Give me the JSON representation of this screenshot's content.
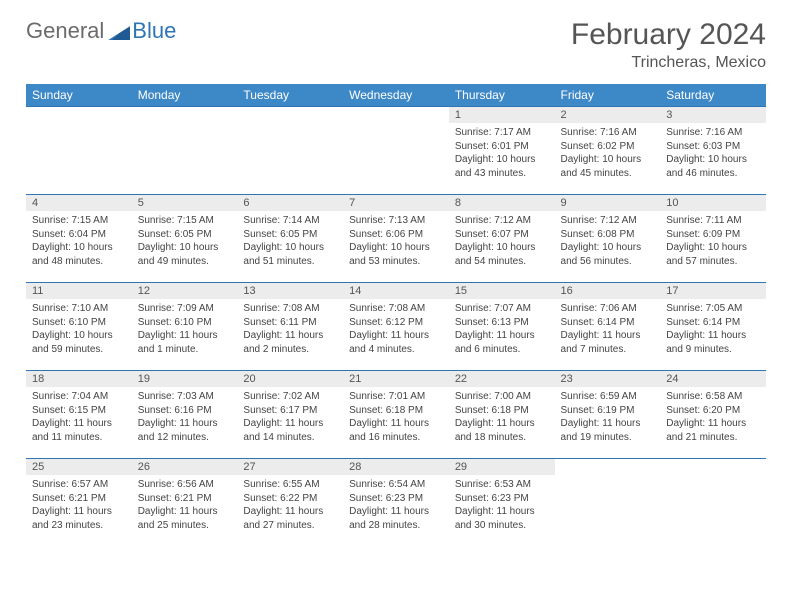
{
  "brand": {
    "part1": "General",
    "part2": "Blue"
  },
  "title": {
    "month": "February 2024",
    "location": "Trincheras, Mexico"
  },
  "colors": {
    "header_bg": "#3d88c7",
    "header_text": "#ffffff",
    "rule": "#2f75b5",
    "daynum_bg": "#ececec",
    "text": "#444444",
    "brand_gray": "#6b6b6b",
    "brand_blue": "#2f75b5"
  },
  "weekdays": [
    "Sunday",
    "Monday",
    "Tuesday",
    "Wednesday",
    "Thursday",
    "Friday",
    "Saturday"
  ],
  "weeks": [
    [
      {
        "n": "",
        "lines": [
          "",
          "",
          "",
          ""
        ],
        "empty": true
      },
      {
        "n": "",
        "lines": [
          "",
          "",
          "",
          ""
        ],
        "empty": true
      },
      {
        "n": "",
        "lines": [
          "",
          "",
          "",
          ""
        ],
        "empty": true
      },
      {
        "n": "",
        "lines": [
          "",
          "",
          "",
          ""
        ],
        "empty": true
      },
      {
        "n": "1",
        "lines": [
          "Sunrise: 7:17 AM",
          "Sunset: 6:01 PM",
          "Daylight: 10 hours",
          "and 43 minutes."
        ]
      },
      {
        "n": "2",
        "lines": [
          "Sunrise: 7:16 AM",
          "Sunset: 6:02 PM",
          "Daylight: 10 hours",
          "and 45 minutes."
        ]
      },
      {
        "n": "3",
        "lines": [
          "Sunrise: 7:16 AM",
          "Sunset: 6:03 PM",
          "Daylight: 10 hours",
          "and 46 minutes."
        ]
      }
    ],
    [
      {
        "n": "4",
        "lines": [
          "Sunrise: 7:15 AM",
          "Sunset: 6:04 PM",
          "Daylight: 10 hours",
          "and 48 minutes."
        ]
      },
      {
        "n": "5",
        "lines": [
          "Sunrise: 7:15 AM",
          "Sunset: 6:05 PM",
          "Daylight: 10 hours",
          "and 49 minutes."
        ]
      },
      {
        "n": "6",
        "lines": [
          "Sunrise: 7:14 AM",
          "Sunset: 6:05 PM",
          "Daylight: 10 hours",
          "and 51 minutes."
        ]
      },
      {
        "n": "7",
        "lines": [
          "Sunrise: 7:13 AM",
          "Sunset: 6:06 PM",
          "Daylight: 10 hours",
          "and 53 minutes."
        ]
      },
      {
        "n": "8",
        "lines": [
          "Sunrise: 7:12 AM",
          "Sunset: 6:07 PM",
          "Daylight: 10 hours",
          "and 54 minutes."
        ]
      },
      {
        "n": "9",
        "lines": [
          "Sunrise: 7:12 AM",
          "Sunset: 6:08 PM",
          "Daylight: 10 hours",
          "and 56 minutes."
        ]
      },
      {
        "n": "10",
        "lines": [
          "Sunrise: 7:11 AM",
          "Sunset: 6:09 PM",
          "Daylight: 10 hours",
          "and 57 minutes."
        ]
      }
    ],
    [
      {
        "n": "11",
        "lines": [
          "Sunrise: 7:10 AM",
          "Sunset: 6:10 PM",
          "Daylight: 10 hours",
          "and 59 minutes."
        ]
      },
      {
        "n": "12",
        "lines": [
          "Sunrise: 7:09 AM",
          "Sunset: 6:10 PM",
          "Daylight: 11 hours",
          "and 1 minute."
        ]
      },
      {
        "n": "13",
        "lines": [
          "Sunrise: 7:08 AM",
          "Sunset: 6:11 PM",
          "Daylight: 11 hours",
          "and 2 minutes."
        ]
      },
      {
        "n": "14",
        "lines": [
          "Sunrise: 7:08 AM",
          "Sunset: 6:12 PM",
          "Daylight: 11 hours",
          "and 4 minutes."
        ]
      },
      {
        "n": "15",
        "lines": [
          "Sunrise: 7:07 AM",
          "Sunset: 6:13 PM",
          "Daylight: 11 hours",
          "and 6 minutes."
        ]
      },
      {
        "n": "16",
        "lines": [
          "Sunrise: 7:06 AM",
          "Sunset: 6:14 PM",
          "Daylight: 11 hours",
          "and 7 minutes."
        ]
      },
      {
        "n": "17",
        "lines": [
          "Sunrise: 7:05 AM",
          "Sunset: 6:14 PM",
          "Daylight: 11 hours",
          "and 9 minutes."
        ]
      }
    ],
    [
      {
        "n": "18",
        "lines": [
          "Sunrise: 7:04 AM",
          "Sunset: 6:15 PM",
          "Daylight: 11 hours",
          "and 11 minutes."
        ]
      },
      {
        "n": "19",
        "lines": [
          "Sunrise: 7:03 AM",
          "Sunset: 6:16 PM",
          "Daylight: 11 hours",
          "and 12 minutes."
        ]
      },
      {
        "n": "20",
        "lines": [
          "Sunrise: 7:02 AM",
          "Sunset: 6:17 PM",
          "Daylight: 11 hours",
          "and 14 minutes."
        ]
      },
      {
        "n": "21",
        "lines": [
          "Sunrise: 7:01 AM",
          "Sunset: 6:18 PM",
          "Daylight: 11 hours",
          "and 16 minutes."
        ]
      },
      {
        "n": "22",
        "lines": [
          "Sunrise: 7:00 AM",
          "Sunset: 6:18 PM",
          "Daylight: 11 hours",
          "and 18 minutes."
        ]
      },
      {
        "n": "23",
        "lines": [
          "Sunrise: 6:59 AM",
          "Sunset: 6:19 PM",
          "Daylight: 11 hours",
          "and 19 minutes."
        ]
      },
      {
        "n": "24",
        "lines": [
          "Sunrise: 6:58 AM",
          "Sunset: 6:20 PM",
          "Daylight: 11 hours",
          "and 21 minutes."
        ]
      }
    ],
    [
      {
        "n": "25",
        "lines": [
          "Sunrise: 6:57 AM",
          "Sunset: 6:21 PM",
          "Daylight: 11 hours",
          "and 23 minutes."
        ]
      },
      {
        "n": "26",
        "lines": [
          "Sunrise: 6:56 AM",
          "Sunset: 6:21 PM",
          "Daylight: 11 hours",
          "and 25 minutes."
        ]
      },
      {
        "n": "27",
        "lines": [
          "Sunrise: 6:55 AM",
          "Sunset: 6:22 PM",
          "Daylight: 11 hours",
          "and 27 minutes."
        ]
      },
      {
        "n": "28",
        "lines": [
          "Sunrise: 6:54 AM",
          "Sunset: 6:23 PM",
          "Daylight: 11 hours",
          "and 28 minutes."
        ]
      },
      {
        "n": "29",
        "lines": [
          "Sunrise: 6:53 AM",
          "Sunset: 6:23 PM",
          "Daylight: 11 hours",
          "and 30 minutes."
        ]
      },
      {
        "n": "",
        "lines": [
          "",
          "",
          "",
          ""
        ],
        "empty": true
      },
      {
        "n": "",
        "lines": [
          "",
          "",
          "",
          ""
        ],
        "empty": true
      }
    ]
  ]
}
